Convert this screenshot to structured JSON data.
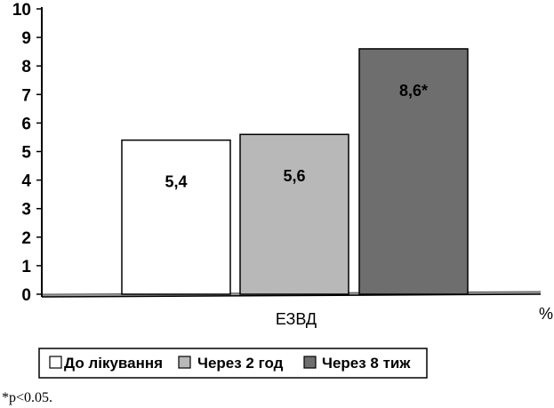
{
  "chart_data": {
    "type": "bar",
    "categories": [
      "ЕЗВД"
    ],
    "series": [
      {
        "name": "До лікування",
        "values": [
          5.4
        ],
        "label": "5,4",
        "color": "#ffffff"
      },
      {
        "name": "Через 2 год",
        "values": [
          5.6
        ],
        "label": "5,6",
        "color": "#b8b8b8"
      },
      {
        "name": "Через 8 тиж",
        "values": [
          8.6
        ],
        "label": "8,6*",
        "color": "#6e6e6e"
      }
    ],
    "ylim": [
      0,
      10
    ],
    "yticks": [
      "0",
      "1",
      "2",
      "3",
      "4",
      "5",
      "6",
      "7",
      "8",
      "9",
      "10"
    ],
    "unit_label": "%",
    "grid": false,
    "legend_placement": "bottom-left",
    "axis_color": "#000000",
    "floor_color": "#9a9a9a"
  },
  "footnote": "*p<0.05."
}
